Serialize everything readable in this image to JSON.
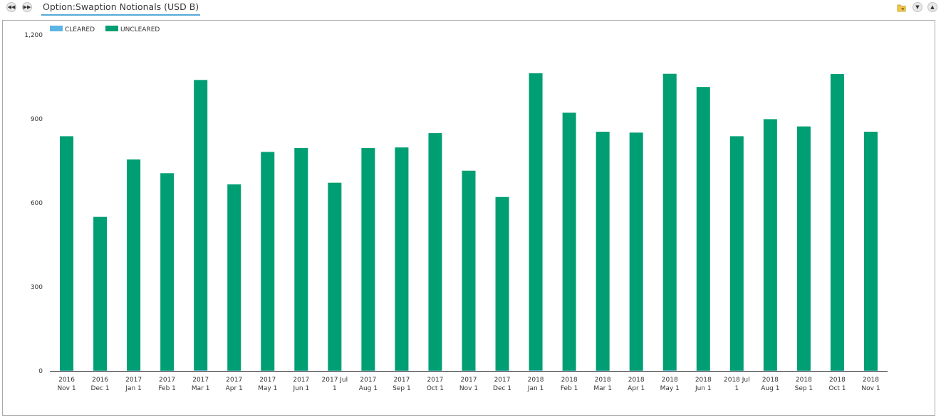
{
  "header": {
    "title": "Option:Swaption Notionals (USD B)",
    "nav_prev_icon": "rewind-icon",
    "nav_next_icon": "fast-forward-icon",
    "right_icons": [
      "folder-export-icon",
      "collapse-down-icon",
      "expand-up-icon"
    ]
  },
  "colors": {
    "cleared": "#5ab4e5",
    "uncleared": "#009e73",
    "accent": "#56a9d8"
  },
  "chart_data": {
    "type": "bar",
    "stacked": true,
    "title": "",
    "xlabel": "",
    "ylabel": "",
    "ylim": [
      0,
      1200
    ],
    "yticks": [
      0,
      300,
      600,
      900,
      1200
    ],
    "ytick_labels": [
      "0",
      "300",
      "600",
      "900",
      "1,200"
    ],
    "grid": false,
    "legend_position": "top-left",
    "categories": [
      [
        "2016",
        "Nov 1"
      ],
      [
        "2016",
        "Dec 1"
      ],
      [
        "2017",
        "Jan 1"
      ],
      [
        "2017",
        "Feb 1"
      ],
      [
        "2017",
        "Mar 1"
      ],
      [
        "2017",
        "Apr 1"
      ],
      [
        "2017",
        "May 1"
      ],
      [
        "2017",
        "Jun 1"
      ],
      [
        "2017 Jul",
        "1"
      ],
      [
        "2017",
        "Aug 1"
      ],
      [
        "2017",
        "Sep 1"
      ],
      [
        "2017",
        "Oct 1"
      ],
      [
        "2017",
        "Nov 1"
      ],
      [
        "2017",
        "Dec 1"
      ],
      [
        "2018",
        "Jan 1"
      ],
      [
        "2018",
        "Feb 1"
      ],
      [
        "2018",
        "Mar 1"
      ],
      [
        "2018",
        "Apr 1"
      ],
      [
        "2018",
        "May 1"
      ],
      [
        "2018",
        "Jun 1"
      ],
      [
        "2018 Jul",
        "1"
      ],
      [
        "2018",
        "Aug 1"
      ],
      [
        "2018",
        "Sep 1"
      ],
      [
        "2018",
        "Oct 1"
      ],
      [
        "2018",
        "Nov 1"
      ]
    ],
    "series": [
      {
        "name": "CLEARED",
        "values": [
          1,
          1,
          1,
          1,
          2,
          1,
          1,
          1,
          1,
          1,
          1,
          1,
          1,
          1,
          2,
          1,
          1,
          1,
          2,
          1,
          1,
          1,
          1,
          1,
          1
        ]
      },
      {
        "name": "UNCLEARED",
        "values": [
          837,
          549,
          754,
          705,
          1037,
          665,
          781,
          795,
          671,
          795,
          797,
          848,
          714,
          620,
          1061,
          921,
          853,
          850,
          1059,
          1013,
          837,
          898,
          872,
          1059,
          853
        ]
      }
    ]
  }
}
